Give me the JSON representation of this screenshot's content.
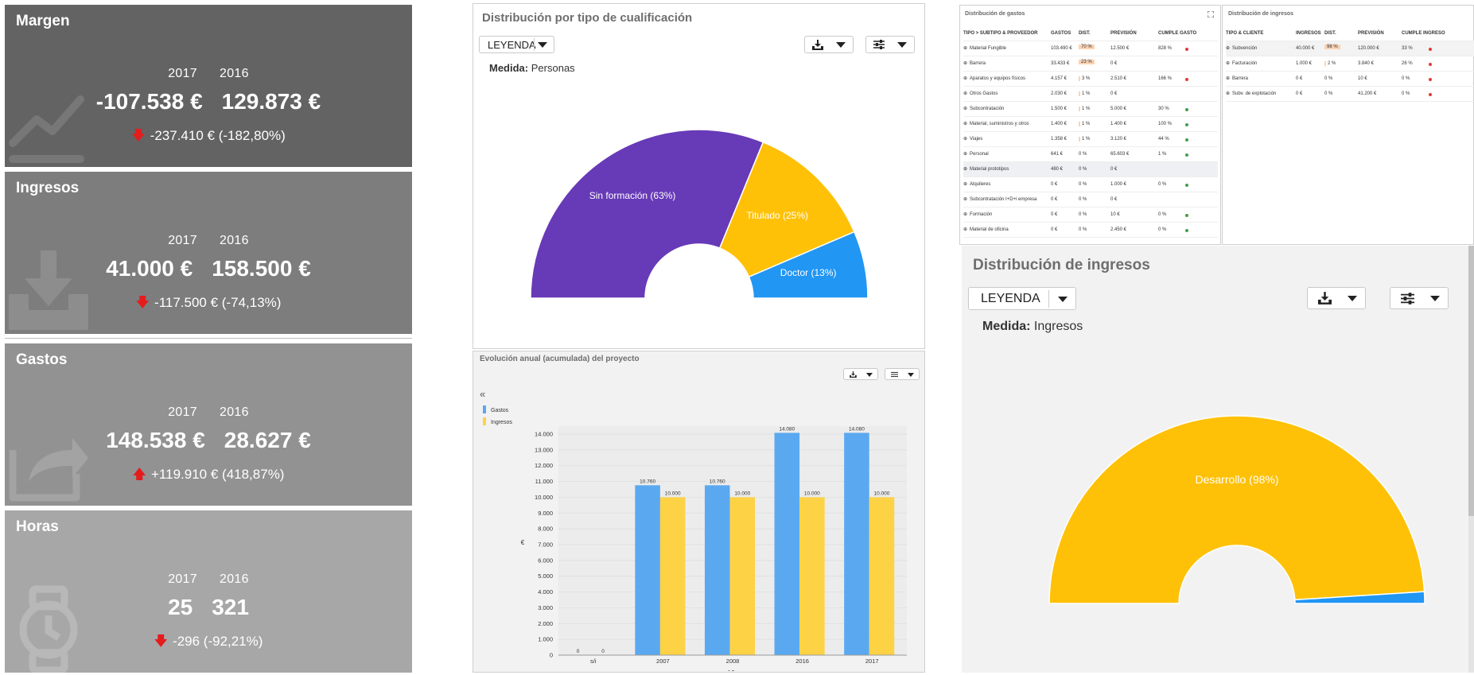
{
  "kpis": [
    {
      "title": "Margen",
      "year_current": "2017",
      "year_prev": "2016",
      "value_current": "-107.538 €",
      "value_prev": "129.873 €",
      "delta": "-237.410 €",
      "delta_pct": "(-182,80%)",
      "trend": "down",
      "icon": "chart-line-icon",
      "bg": "#636363"
    },
    {
      "title": "Ingresos",
      "year_current": "2017",
      "year_prev": "2016",
      "value_current": "41.000 €",
      "value_prev": "158.500 €",
      "delta": "-117.500 €",
      "delta_pct": "(-74,13%)",
      "trend": "down",
      "icon": "download-tray-icon",
      "bg": "#7d7d7d"
    },
    {
      "title": "Gastos",
      "year_current": "2017",
      "year_prev": "2016",
      "value_current": "148.538 €",
      "value_prev": "28.627 €",
      "delta": "+119.910 €",
      "delta_pct": "(418,87%)",
      "trend": "up",
      "icon": "share-export-icon",
      "bg": "#929292"
    },
    {
      "title": "Horas",
      "year_current": "2017",
      "year_prev": "2016",
      "value_current": "25",
      "value_prev": "321",
      "delta": "-296",
      "delta_pct": "(-92,21%)",
      "trend": "down",
      "icon": "watch-icon",
      "bg": "#a7a7a7"
    }
  ],
  "qualification_panel": {
    "title": "Distribución por tipo de cualificación",
    "legend_button": "LEYENDA",
    "measure_label": "Medida:",
    "measure_value": "Personas",
    "chart_data": {
      "type": "pie",
      "subtype": "half-donut",
      "slices": [
        {
          "label": "Sin formación (63%)",
          "value": 63,
          "color": "#673ab7"
        },
        {
          "label": "Titulado (25%)",
          "value": 25,
          "color": "#ffc107"
        },
        {
          "label": "Doctor (13%)",
          "value": 13,
          "color": "#2196f3"
        }
      ]
    }
  },
  "evolution_panel": {
    "title": "Evolución anual (acumulada) del proyecto",
    "collapse_glyph": "«",
    "chart_data": {
      "type": "bar",
      "categories": [
        "s/i",
        "2007",
        "2008",
        "2016",
        "2017"
      ],
      "series": [
        {
          "name": "Gastos",
          "color": "#5aa9f0",
          "values": [
            0,
            10760,
            10760,
            14080,
            14080
          ],
          "labels": [
            "0",
            "10.760",
            "10.760",
            "14.080",
            "14.080"
          ]
        },
        {
          "name": "Ingresos",
          "color": "#fdd245",
          "values": [
            0,
            10000,
            10000,
            10000,
            10000
          ],
          "labels": [
            "0",
            "10.000",
            "10.000",
            "10.000",
            "10.000"
          ]
        }
      ],
      "xlabel": "Año",
      "ylabel": "€",
      "ylim": [
        0,
        14000
      ],
      "yticks": [
        "0",
        "1.000",
        "2.000",
        "3.000",
        "4.000",
        "5.000",
        "6.000",
        "7.000",
        "8.000",
        "9.000",
        "10.000",
        "11.000",
        "12.000",
        "13.000",
        "14.000"
      ],
      "grid": true,
      "legend_position": "left"
    }
  },
  "expenses_table": {
    "title": "Distribución de gastos",
    "headers": [
      "TIPO > SUBTIPO & PROVEEDOR",
      "GASTOS",
      "DIST.",
      "PREVISIÓN",
      "CUMPLE GASTO"
    ],
    "rows": [
      {
        "name": "Material Fungible",
        "gastos": "103.490 €",
        "dist": "70 %",
        "prev": "12.500 €",
        "cumple": "828 %",
        "status": "red"
      },
      {
        "name": "Barrera",
        "gastos": "33.433 €",
        "dist": "23 %",
        "prev": "0 €",
        "cumple": "",
        "status": ""
      },
      {
        "name": "Aparatos y equipos físicos",
        "gastos": "4.157 €",
        "dist": "3 %",
        "prev": "2.510 €",
        "cumple": "166 %",
        "status": "red"
      },
      {
        "name": "Otros Gastos",
        "gastos": "2.030 €",
        "dist": "1 %",
        "prev": "0 €",
        "cumple": "",
        "status": ""
      },
      {
        "name": "Subcontratación",
        "gastos": "1.500 €",
        "dist": "1 %",
        "prev": "5.000 €",
        "cumple": "30 %",
        "status": "green"
      },
      {
        "name": "Material, suministros y otros",
        "gastos": "1.400 €",
        "dist": "1 %",
        "prev": "1.400 €",
        "cumple": "100 %",
        "status": "green"
      },
      {
        "name": "Viajes",
        "gastos": "1.358 €",
        "dist": "1 %",
        "prev": "3.120 €",
        "cumple": "44 %",
        "status": "green"
      },
      {
        "name": "Personal",
        "gastos": "641 €",
        "dist": "0 %",
        "prev": "65.603 €",
        "cumple": "1 %",
        "status": "green"
      },
      {
        "name": "Material prototipos",
        "gastos": "480 €",
        "dist": "0 %",
        "prev": "0 €",
        "cumple": "",
        "status": ""
      },
      {
        "name": "Alquileres",
        "gastos": "0 €",
        "dist": "0 %",
        "prev": "1.000 €",
        "cumple": "0 %",
        "status": "green"
      },
      {
        "name": "Subcontratación I+D+i empresa",
        "gastos": "0 €",
        "dist": "0 %",
        "prev": "0 €",
        "cumple": "",
        "status": ""
      },
      {
        "name": "Formación",
        "gastos": "0 €",
        "dist": "0 %",
        "prev": "10 €",
        "cumple": "0 %",
        "status": "green"
      },
      {
        "name": "Material de oficina",
        "gastos": "0 €",
        "dist": "0 %",
        "prev": "2.450 €",
        "cumple": "0 %",
        "status": "green"
      }
    ]
  },
  "income_table": {
    "title": "Distribución de ingresos",
    "headers": [
      "TIPO & CLIENTE",
      "INGRESOS",
      "DIST.",
      "PREVISIÓN",
      "CUMPLE INGRESO"
    ],
    "rows": [
      {
        "name": "Subvención",
        "ingresos": "40.000 €",
        "dist": "98 %",
        "prev": "120.000 €",
        "cumple": "33 %",
        "status": "red"
      },
      {
        "name": "Facturación",
        "ingresos": "1.000 €",
        "dist": "2 %",
        "prev": "3.840 €",
        "cumple": "26 %",
        "status": "red"
      },
      {
        "name": "Barrera",
        "ingresos": "0 €",
        "dist": "0 %",
        "prev": "10 €",
        "cumple": "0 %",
        "status": "red"
      },
      {
        "name": "Subv. de explotación",
        "ingresos": "0 €",
        "dist": "0 %",
        "prev": "41.200 €",
        "cumple": "0 %",
        "status": "red"
      }
    ]
  },
  "income_panel": {
    "title": "Distribución de ingresos",
    "legend_button": "LEYENDA",
    "measure_label": "Medida:",
    "measure_value": "Ingresos",
    "chart_data": {
      "type": "pie",
      "subtype": "half-donut",
      "slices": [
        {
          "label": "Desarrollo (98%)",
          "value": 98,
          "color": "#ffc107"
        },
        {
          "label": "",
          "value": 2,
          "color": "#2196f3"
        }
      ]
    }
  }
}
